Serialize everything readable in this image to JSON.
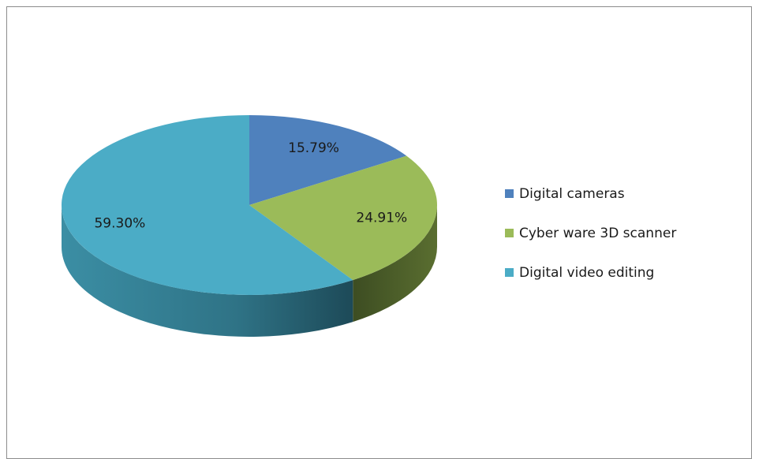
{
  "chart_data": {
    "type": "pie3d",
    "categories": [
      "Digital cameras",
      "Cyber ware 3D scanner",
      "Digital video editing"
    ],
    "values": [
      15.79,
      24.91,
      59.3
    ],
    "value_labels": [
      "15.79%",
      "24.91%",
      "59.30%"
    ],
    "colors": [
      "#4f81bd",
      "#9bbb59",
      "#4bacc6"
    ],
    "legend": "right"
  }
}
